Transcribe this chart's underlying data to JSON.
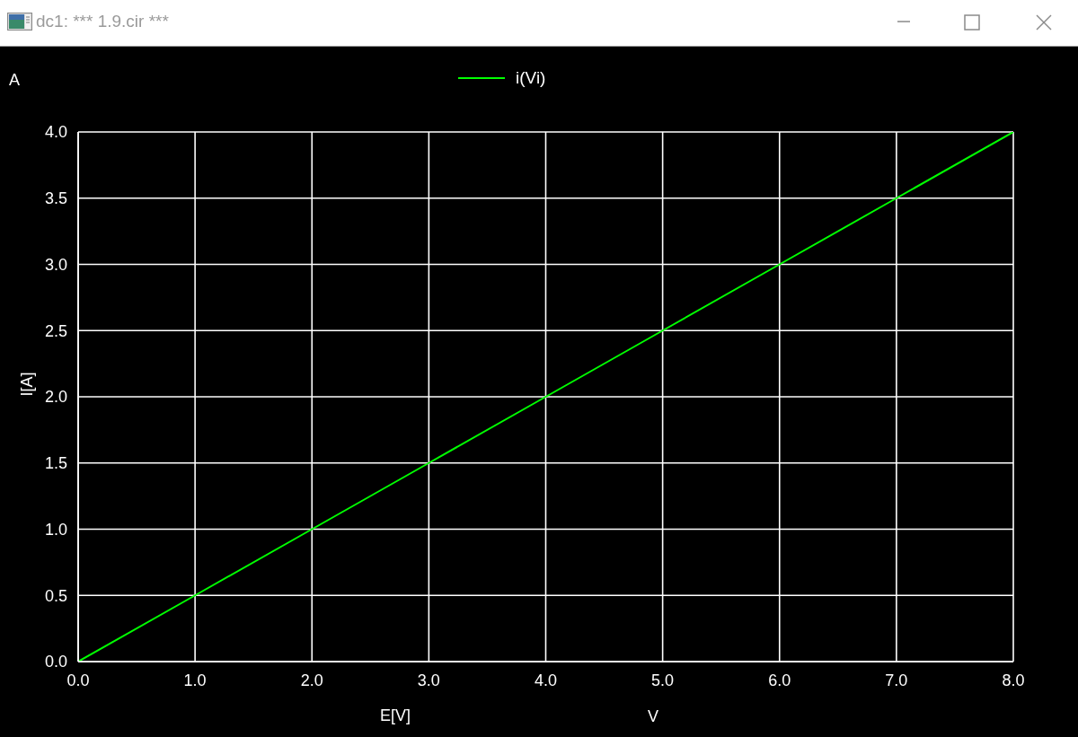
{
  "chart_data": {
    "type": "line",
    "title": "dc1: *** 1.9.cir ***",
    "xlabel": "E[V]",
    "ylabel": "I[A]",
    "annotations": [
      "A",
      "V"
    ],
    "x": [
      0,
      1,
      2,
      3,
      4,
      5,
      6,
      7,
      8
    ],
    "series": [
      {
        "name": "i(Vi)",
        "color": "#00ff00",
        "values": [
          0,
          0.5,
          1,
          1.5,
          2,
          2.5,
          3,
          3.5,
          4
        ]
      }
    ],
    "xlim": [
      0,
      8
    ],
    "ylim": [
      0,
      4
    ],
    "xticks": [
      {
        "value": 0,
        "label": "0.0"
      },
      {
        "value": 1,
        "label": "1.0"
      },
      {
        "value": 2,
        "label": "2.0"
      },
      {
        "value": 3,
        "label": "3.0"
      },
      {
        "value": 4,
        "label": "4.0"
      },
      {
        "value": 5,
        "label": "5.0"
      },
      {
        "value": 6,
        "label": "6.0"
      },
      {
        "value": 7,
        "label": "7.0"
      },
      {
        "value": 8,
        "label": "8.0"
      }
    ],
    "yticks": [
      {
        "value": 0,
        "label": "0.0"
      },
      {
        "value": 0.5,
        "label": "0.5"
      },
      {
        "value": 1,
        "label": "1.0"
      },
      {
        "value": 1.5,
        "label": "1.5"
      },
      {
        "value": 2,
        "label": "2.0"
      },
      {
        "value": 2.5,
        "label": "2.5"
      },
      {
        "value": 3,
        "label": "3.0"
      },
      {
        "value": 3.5,
        "label": "3.5"
      },
      {
        "value": 4,
        "label": "4.0"
      }
    ],
    "grid": true,
    "legend": "top",
    "marker": "none"
  }
}
